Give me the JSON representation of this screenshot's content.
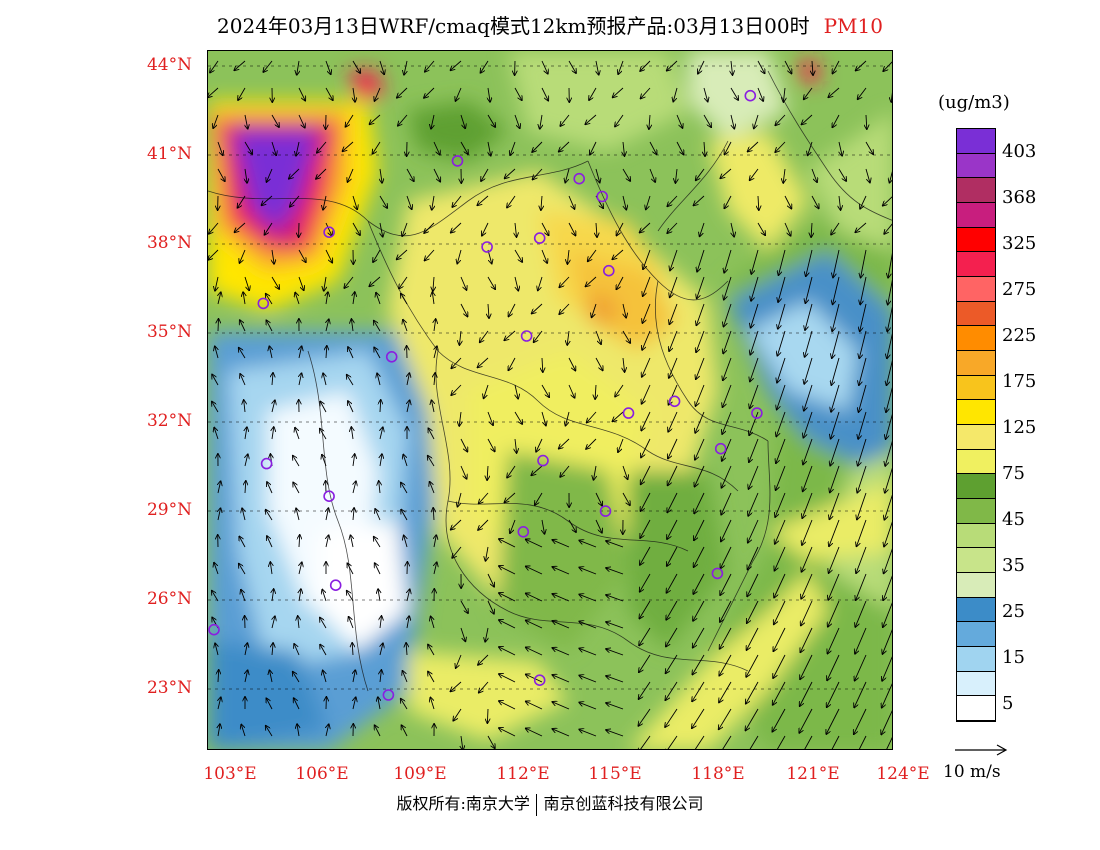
{
  "title": {
    "main": "2024年03月13日WRF/cmaq模式12km预报产品:03月13日00时",
    "variable": "PM10"
  },
  "lat_ticks": [
    "44°N",
    "41°N",
    "38°N",
    "35°N",
    "32°N",
    "29°N",
    "26°N",
    "23°N"
  ],
  "lon_ticks": [
    "103°E",
    "106°E",
    "109°E",
    "112°E",
    "115°E",
    "118°E",
    "121°E",
    "124°E"
  ],
  "colorbar": {
    "unit": "(ug/m3)",
    "colors": [
      "#7a2fd6",
      "#9a35c8",
      "#b02e62",
      "#c81e7e",
      "#ff0000",
      "#f4204f",
      "#ff6464",
      "#ec5a28",
      "#ff8c00",
      "#f8a828",
      "#f8c41c",
      "#ffe600",
      "#f5e86a",
      "#f0f060",
      "#5ea030",
      "#80b848",
      "#b8dc78",
      "#c8e48a",
      "#d8ecb8",
      "#3c8cc8",
      "#64aadc",
      "#a0d4f0",
      "#d8f0fc",
      "#ffffff"
    ],
    "labels": [
      "403",
      "368",
      "325",
      "275",
      "225",
      "175",
      "125",
      "75",
      "45",
      "35",
      "25",
      "15",
      "5"
    ]
  },
  "reference_vector": {
    "label": "10 m/s"
  },
  "copyright": {
    "left": "版权所有:南京大学",
    "right": "南京创蓝科技有限公司"
  },
  "stations": [
    {
      "lon": 119.3,
      "lat": 43.0
    },
    {
      "lon": 110.4,
      "lat": 40.8
    },
    {
      "lon": 114.1,
      "lat": 40.2
    },
    {
      "lon": 114.8,
      "lat": 39.6
    },
    {
      "lon": 106.5,
      "lat": 38.4
    },
    {
      "lon": 111.3,
      "lat": 37.9
    },
    {
      "lon": 112.9,
      "lat": 38.2
    },
    {
      "lon": 115.0,
      "lat": 37.1
    },
    {
      "lon": 104.5,
      "lat": 36.0
    },
    {
      "lon": 112.5,
      "lat": 34.9
    },
    {
      "lon": 108.4,
      "lat": 34.2
    },
    {
      "lon": 117.0,
      "lat": 32.7
    },
    {
      "lon": 115.6,
      "lat": 32.3
    },
    {
      "lon": 119.5,
      "lat": 32.3
    },
    {
      "lon": 118.4,
      "lat": 31.1
    },
    {
      "lon": 113.0,
      "lat": 30.7
    },
    {
      "lon": 104.6,
      "lat": 30.6
    },
    {
      "lon": 106.5,
      "lat": 29.5
    },
    {
      "lon": 114.9,
      "lat": 29.0
    },
    {
      "lon": 112.4,
      "lat": 28.3
    },
    {
      "lon": 118.3,
      "lat": 26.9
    },
    {
      "lon": 106.7,
      "lat": 26.5
    },
    {
      "lon": 103.0,
      "lat": 25.0
    },
    {
      "lon": 112.9,
      "lat": 23.3
    },
    {
      "lon": 108.3,
      "lat": 22.8
    }
  ]
}
